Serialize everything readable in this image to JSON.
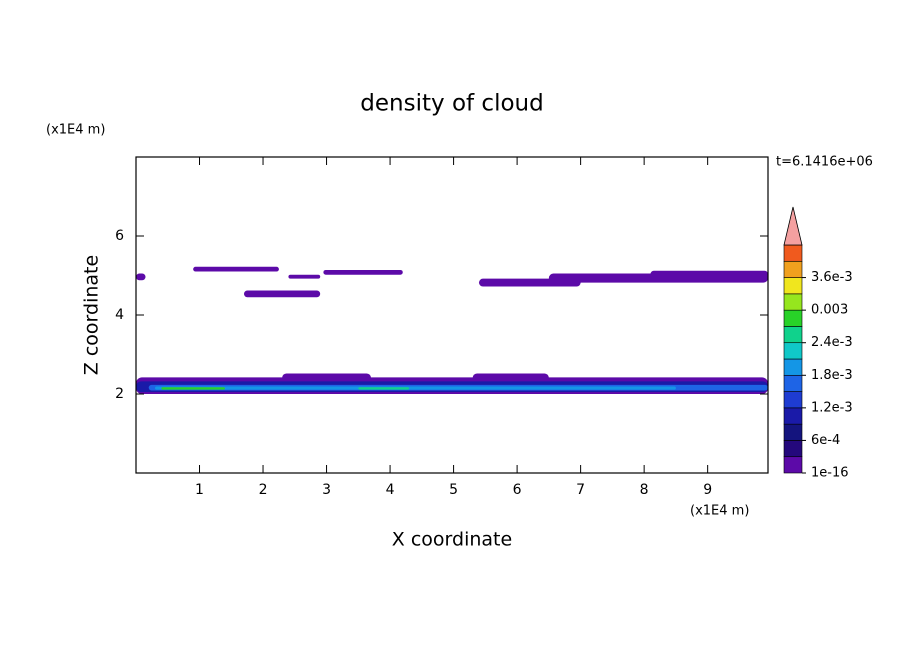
{
  "chart_data": {
    "type": "contour",
    "title": "density of cloud",
    "xlabel": "X coordinate",
    "ylabel": "Z coordinate",
    "xunit": "(x1E4 m)",
    "yunit": "(x1E4 m)",
    "time_label": "t=6.1416e+06",
    "xlim": [
      0,
      9.95
    ],
    "ylim": [
      0,
      8
    ],
    "xticks": [
      1,
      2,
      3,
      4,
      5,
      6,
      7,
      8,
      9
    ],
    "yticks": [
      2,
      4,
      6
    ],
    "levels": [
      1e-16,
      0.0003,
      0.0006,
      0.0009,
      0.0012,
      0.0015,
      0.0018,
      0.0021,
      0.0024,
      0.0027,
      0.003,
      0.0033,
      0.0036,
      0.0039
    ],
    "colors": [
      "#5c0aa8",
      "#24087c",
      "#14147e",
      "#1a1aa8",
      "#1e3cd2",
      "#1e64e6",
      "#1496e6",
      "#10c8c8",
      "#10d28c",
      "#28d228",
      "#96e61e",
      "#f0e61e",
      "#f0a01e",
      "#f05a1e"
    ],
    "extend_color": "#f4a0a0",
    "colorbar_ticks": [
      {
        "value": 1e-16,
        "label": "1e-16"
      },
      {
        "value": 0.0006,
        "label": "6e-4"
      },
      {
        "value": 0.0012,
        "label": "1.2e-3"
      },
      {
        "value": 0.0018,
        "label": "1.8e-3"
      },
      {
        "value": 0.0024,
        "label": "2.4e-3"
      },
      0.003,
      {
        "value": 0.0036,
        "label": "3.6e-3"
      }
    ],
    "blobs": [
      {
        "x": [
          0,
          0.15
        ],
        "z": [
          4.88,
          5.05
        ],
        "value": 1e-16
      },
      {
        "x": [
          0.9,
          2.25
        ],
        "z": [
          5.1,
          5.22
        ],
        "value": 1e-16
      },
      {
        "x": [
          1.7,
          2.9
        ],
        "z": [
          4.45,
          4.62
        ],
        "value": 1e-16
      },
      {
        "x": [
          2.4,
          2.9
        ],
        "z": [
          4.92,
          5.02
        ],
        "value": 1e-16
      },
      {
        "x": [
          2.95,
          4.2
        ],
        "z": [
          5.02,
          5.14
        ],
        "value": 1e-16
      },
      {
        "x": [
          5.4,
          7.0
        ],
        "z": [
          4.72,
          4.92
        ],
        "value": 1e-16
      },
      {
        "x": [
          6.5,
          9.95
        ],
        "z": [
          4.82,
          5.05
        ],
        "value": 1e-16
      },
      {
        "x": [
          8.1,
          9.95
        ],
        "z": [
          4.95,
          5.12
        ],
        "value": 1e-16
      },
      {
        "x": [
          2.3,
          3.7
        ],
        "z": [
          2.3,
          2.52
        ],
        "value": 1e-16
      },
      {
        "x": [
          5.3,
          6.5
        ],
        "z": [
          2.3,
          2.52
        ],
        "value": 1e-16
      },
      {
        "x": [
          0,
          9.95
        ],
        "z": [
          2.0,
          2.42
        ],
        "value": 1e-16
      },
      {
        "x": [
          0,
          9.95
        ],
        "z": [
          2.05,
          2.32
        ],
        "value": 0.0009
      },
      {
        "x": [
          0.2,
          9.95
        ],
        "z": [
          2.09,
          2.23
        ],
        "value": 0.0015
      },
      {
        "x": [
          0.3,
          8.5
        ],
        "z": [
          2.11,
          2.19
        ],
        "value": 0.0018
      },
      {
        "x": [
          0.4,
          1.4
        ],
        "z": [
          2.11,
          2.17
        ],
        "value": 0.0027
      },
      {
        "x": [
          3.5,
          4.3
        ],
        "z": [
          2.11,
          2.17
        ],
        "value": 0.0024
      }
    ]
  }
}
